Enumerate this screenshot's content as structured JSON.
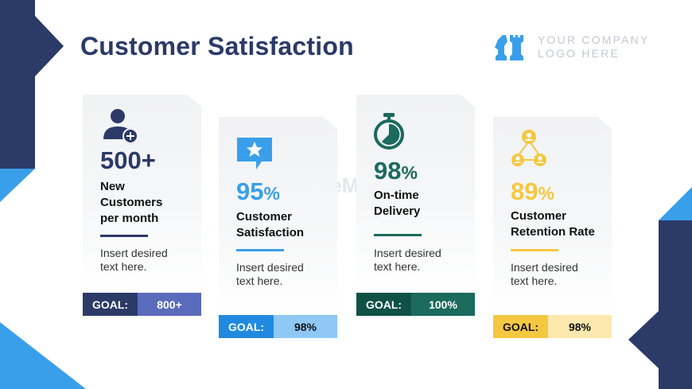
{
  "title": "Customer Satisfaction",
  "logo": {
    "line1": "YOUR COMPANY",
    "line2": "LOGO HERE",
    "icon": "chess-pieces-icon"
  },
  "watermark": "SlideModel",
  "colors": {
    "navy": "#2b3a67",
    "blue": "#3a9fea",
    "teal": "#1b6a5e",
    "gold": "#f5c842"
  },
  "cards": [
    {
      "icon": "add-user-icon",
      "metric_num": "500",
      "metric_suffix": "+",
      "label1": "New",
      "label2": "Customers",
      "label3": "per month",
      "desc1": "Insert desired",
      "desc2": "text here.",
      "goal_key": "GOAL:",
      "goal_value": "800+"
    },
    {
      "icon": "star-chat-icon",
      "metric_num": "95",
      "metric_suffix": "%",
      "label1": "Customer",
      "label2": "Satisfaction",
      "desc1": "Insert desired",
      "desc2": "text here.",
      "goal_key": "GOAL:",
      "goal_value": "98%"
    },
    {
      "icon": "stopwatch-icon",
      "metric_num": "98",
      "metric_suffix": "%",
      "label1": "On-time",
      "label2": "Delivery",
      "desc1": "Insert desired",
      "desc2": "text here.",
      "goal_key": "GOAL:",
      "goal_value": "100%"
    },
    {
      "icon": "network-users-icon",
      "metric_num": "89",
      "metric_suffix": "%",
      "label1": "Customer",
      "label2": "Retention Rate",
      "desc1": "Insert desired",
      "desc2": "text here.",
      "goal_key": "GOAL:",
      "goal_value": "98%"
    }
  ]
}
